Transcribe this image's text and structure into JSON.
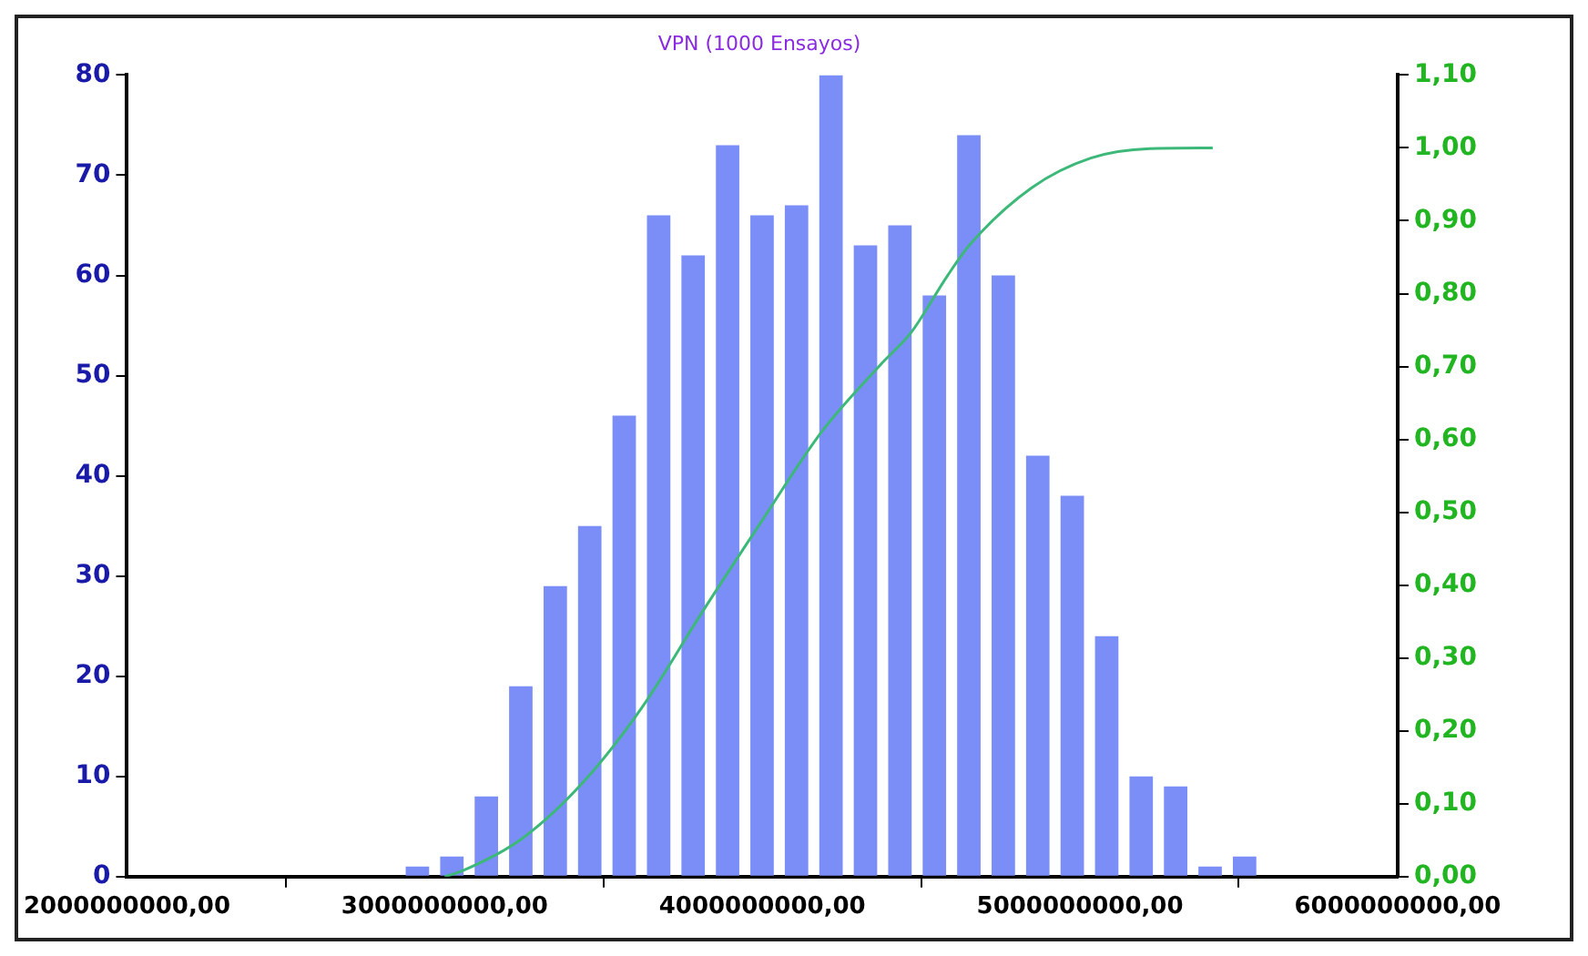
{
  "chart_data": {
    "type": "histogram",
    "title": "VPN (1000 Ensayos)",
    "bins": [
      2860000000,
      2968500000,
      3077000000,
      3185500000,
      3294000000,
      3402500000,
      3511000000,
      3619500000,
      3728000000,
      3836500000,
      3945000000,
      4053500000,
      4162000000,
      4270500000,
      4379000000,
      4487500000,
      4596000000,
      4704500000,
      4813000000,
      4921500000,
      5030000000,
      5138500000,
      5247000000,
      5355500000,
      5464000000,
      5572500000
    ],
    "values": [
      1,
      2,
      8,
      19,
      29,
      35,
      46,
      66,
      62,
      73,
      66,
      67,
      80,
      63,
      65,
      58,
      74,
      60,
      42,
      38,
      24,
      10,
      9,
      1,
      2
    ],
    "color": "#7b8ef7",
    "series": [
      {
        "type": "line",
        "axis": "y2",
        "color": "#3cb878",
        "x": [
          3000000000,
          3056000000,
          3243000000,
          3435000000,
          3621000000,
          3808000000,
          4000000000,
          4186000000,
          4373000000,
          4469000000,
          4582000000,
          4655000000,
          4847000000,
          5034000000,
          5220000000,
          5418000000
        ],
        "values": [
          0,
          0.008,
          0.052,
          0.129,
          0.232,
          0.361,
          0.489,
          0.61,
          0.703,
          0.747,
          0.824,
          0.868,
          0.945,
          0.986,
          0.999,
          1.0
        ]
      }
    ],
    "xlim": [
      2000000000,
      6000000000
    ],
    "xticks": [
      {
        "value": 2000000000,
        "label": "2000000000,00"
      },
      {
        "value": 3000000000,
        "label": "3000000000,00"
      },
      {
        "value": 4000000000,
        "label": "4000000000,00"
      },
      {
        "value": 5000000000,
        "label": "5000000000,00"
      },
      {
        "value": 6000000000,
        "label": "6000000000,00"
      }
    ],
    "ylim": [
      0,
      80
    ],
    "yticks": [
      0,
      10,
      20,
      30,
      40,
      50,
      60,
      70,
      80
    ],
    "y2lim": [
      0,
      1.1
    ],
    "y2ticks": [
      {
        "value": 0,
        "label": "0,00"
      },
      {
        "value": 0.1,
        "label": "0,10"
      },
      {
        "value": 0.2,
        "label": "0,20"
      },
      {
        "value": 0.3,
        "label": "0,30"
      },
      {
        "value": 0.4,
        "label": "0,40"
      },
      {
        "value": 0.5,
        "label": "0,50"
      },
      {
        "value": 0.6,
        "label": "0,60"
      },
      {
        "value": 0.7,
        "label": "0,70"
      },
      {
        "value": 0.8,
        "label": "0,80"
      },
      {
        "value": 0.9,
        "label": "0,90"
      },
      {
        "value": 1.0,
        "label": "1,00"
      },
      {
        "value": 1.1,
        "label": "1,10"
      }
    ],
    "grid": false,
    "legend": false,
    "marker": "none",
    "line_style": "solid"
  }
}
